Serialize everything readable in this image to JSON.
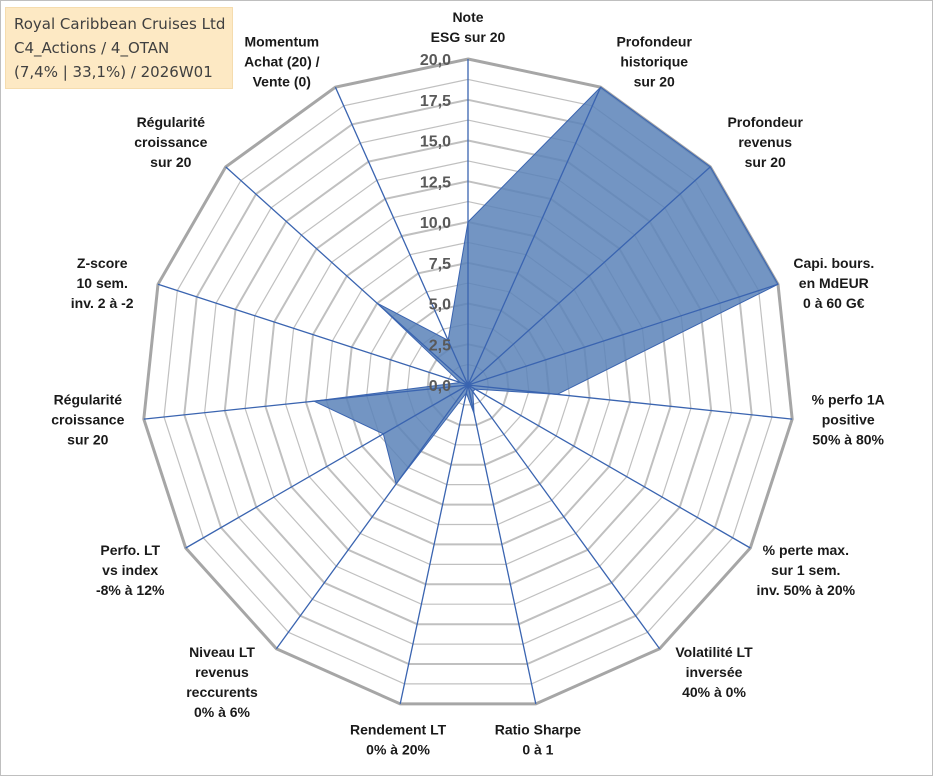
{
  "title_box": {
    "line1": "Royal Caribbean Cruises Ltd",
    "line2": "C4_Actions / 4_OTAN",
    "line3": "(7,4% | 33,1%) / 2026W01"
  },
  "colors": {
    "fill": "#5b82b8",
    "spoke": "#3a64b0",
    "grid": "#c0c0c0",
    "outer_grid": "#a6a6a6",
    "title_bg": "#fde9c4"
  },
  "chart_data": {
    "type": "radar",
    "title": "Royal Caribbean Cruises Ltd",
    "rmin": 0,
    "rmax": 20,
    "tick_labels": [
      "0,0",
      "2,5",
      "5,0",
      "7,5",
      "10,0",
      "12,5",
      "15,0",
      "17,5",
      "20,0"
    ],
    "axes": [
      {
        "lines": [
          "Note",
          "ESG sur 20"
        ],
        "value": 10.0
      },
      {
        "lines": [
          "Profondeur",
          "historique",
          "sur 20"
        ],
        "value": 20.0
      },
      {
        "lines": [
          "Profondeur",
          "revenus",
          "sur 20"
        ],
        "value": 20.0
      },
      {
        "lines": [
          "Capi. bours.",
          "en MdEUR",
          "0 à 60 G€"
        ],
        "value": 20.0
      },
      {
        "lines": [
          "% perfo 1A",
          "positive",
          "50% à 80%"
        ],
        "value": 5.5
      },
      {
        "lines": [
          "% perte max.",
          "sur 1 sem.",
          "inv. 50% à 20%"
        ],
        "value": 0.5
      },
      {
        "lines": [
          "Volatilité LT",
          "inversée",
          "40% à 0%"
        ],
        "value": 0.5
      },
      {
        "lines": [
          "Ratio Sharpe",
          "0 à 1"
        ],
        "value": 1.8
      },
      {
        "lines": [
          "Rendement LT",
          "0% à 20%"
        ],
        "value": 0.5
      },
      {
        "lines": [
          "Niveau LT",
          "revenus",
          "reccurents",
          "0% à 6%"
        ],
        "value": 7.5
      },
      {
        "lines": [
          "Perfo. LT",
          "vs index",
          "-8% à 12%"
        ],
        "value": 6.0
      },
      {
        "lines": [
          "Régularité",
          "croissance",
          "sur 20"
        ],
        "value": 9.5
      },
      {
        "lines": [
          "Z-score",
          "10 sem.",
          "inv. 2 à -2"
        ],
        "value": 0.5
      },
      {
        "lines": [
          "Régularité",
          "croissance",
          "sur 20"
        ],
        "value": 7.5
      },
      {
        "lines": [
          "Momentum",
          "Achat (20) /",
          "Vente (0)"
        ],
        "value": 3.0
      }
    ]
  }
}
